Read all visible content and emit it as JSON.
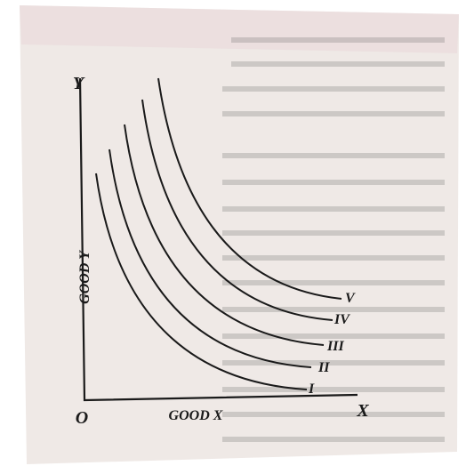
{
  "axes": {
    "y_label": "Y",
    "x_label": "X",
    "origin": "O",
    "y_title": "GOOD Y",
    "x_title": "GOOD X"
  },
  "curves": [
    "I",
    "II",
    "III",
    "IV",
    "V"
  ]
}
